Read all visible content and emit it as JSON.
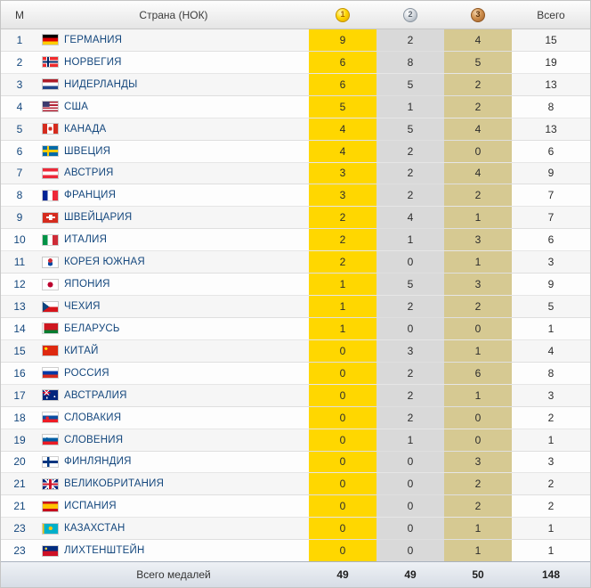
{
  "table": {
    "colors": {
      "gold": "#ffd700",
      "silver": "#d9d9d9",
      "bronze": "#d6c992"
    },
    "header": {
      "rank": "М",
      "country": "Страна (НОК)",
      "total": "Всего",
      "medal_numbers": {
        "gold": "1",
        "silver": "2",
        "bronze": "3"
      }
    },
    "rows": [
      {
        "rank": "1",
        "country": "ГЕРМАНИЯ",
        "flag": "de",
        "gold": 9,
        "silver": 2,
        "bronze": 4,
        "total": 15
      },
      {
        "rank": "2",
        "country": "НОРВЕГИЯ",
        "flag": "no",
        "gold": 6,
        "silver": 8,
        "bronze": 5,
        "total": 19
      },
      {
        "rank": "3",
        "country": "НИДЕРЛАНДЫ",
        "flag": "nl",
        "gold": 6,
        "silver": 5,
        "bronze": 2,
        "total": 13
      },
      {
        "rank": "4",
        "country": "США",
        "flag": "us",
        "gold": 5,
        "silver": 1,
        "bronze": 2,
        "total": 8
      },
      {
        "rank": "5",
        "country": "КАНАДА",
        "flag": "ca",
        "gold": 4,
        "silver": 5,
        "bronze": 4,
        "total": 13
      },
      {
        "rank": "6",
        "country": "ШВЕЦИЯ",
        "flag": "se",
        "gold": 4,
        "silver": 2,
        "bronze": 0,
        "total": 6
      },
      {
        "rank": "7",
        "country": "АВСТРИЯ",
        "flag": "at",
        "gold": 3,
        "silver": 2,
        "bronze": 4,
        "total": 9
      },
      {
        "rank": "8",
        "country": "ФРАНЦИЯ",
        "flag": "fr",
        "gold": 3,
        "silver": 2,
        "bronze": 2,
        "total": 7
      },
      {
        "rank": "9",
        "country": "ШВЕЙЦАРИЯ",
        "flag": "ch",
        "gold": 2,
        "silver": 4,
        "bronze": 1,
        "total": 7
      },
      {
        "rank": "10",
        "country": "ИТАЛИЯ",
        "flag": "it",
        "gold": 2,
        "silver": 1,
        "bronze": 3,
        "total": 6
      },
      {
        "rank": "11",
        "country": "КОРЕЯ ЮЖНАЯ",
        "flag": "kr",
        "gold": 2,
        "silver": 0,
        "bronze": 1,
        "total": 3
      },
      {
        "rank": "12",
        "country": "ЯПОНИЯ",
        "flag": "jp",
        "gold": 1,
        "silver": 5,
        "bronze": 3,
        "total": 9
      },
      {
        "rank": "13",
        "country": "ЧЕХИЯ",
        "flag": "cz",
        "gold": 1,
        "silver": 2,
        "bronze": 2,
        "total": 5
      },
      {
        "rank": "14",
        "country": "БЕЛАРУСЬ",
        "flag": "by",
        "gold": 1,
        "silver": 0,
        "bronze": 0,
        "total": 1
      },
      {
        "rank": "15",
        "country": "КИТАЙ",
        "flag": "cn",
        "gold": 0,
        "silver": 3,
        "bronze": 1,
        "total": 4
      },
      {
        "rank": "16",
        "country": "РОССИЯ",
        "flag": "ru",
        "gold": 0,
        "silver": 2,
        "bronze": 6,
        "total": 8
      },
      {
        "rank": "17",
        "country": "АВСТРАЛИЯ",
        "flag": "au",
        "gold": 0,
        "silver": 2,
        "bronze": 1,
        "total": 3
      },
      {
        "rank": "18",
        "country": "СЛОВАКИЯ",
        "flag": "sk",
        "gold": 0,
        "silver": 2,
        "bronze": 0,
        "total": 2
      },
      {
        "rank": "19",
        "country": "СЛОВЕНИЯ",
        "flag": "si",
        "gold": 0,
        "silver": 1,
        "bronze": 0,
        "total": 1
      },
      {
        "rank": "20",
        "country": "ФИНЛЯНДИЯ",
        "flag": "fi",
        "gold": 0,
        "silver": 0,
        "bronze": 3,
        "total": 3
      },
      {
        "rank": "21",
        "country": "ВЕЛИКОБРИТАНИЯ",
        "flag": "gb",
        "gold": 0,
        "silver": 0,
        "bronze": 2,
        "total": 2
      },
      {
        "rank": "21",
        "country": "ИСПАНИЯ",
        "flag": "es",
        "gold": 0,
        "silver": 0,
        "bronze": 2,
        "total": 2
      },
      {
        "rank": "23",
        "country": "КАЗАХСТАН",
        "flag": "kz",
        "gold": 0,
        "silver": 0,
        "bronze": 1,
        "total": 1
      },
      {
        "rank": "23",
        "country": "ЛИХТЕНШТЕЙН",
        "flag": "li",
        "gold": 0,
        "silver": 0,
        "bronze": 1,
        "total": 1
      }
    ],
    "footer": {
      "label": "Всего медалей",
      "gold": 49,
      "silver": 49,
      "bronze": 50,
      "total": 148
    }
  }
}
